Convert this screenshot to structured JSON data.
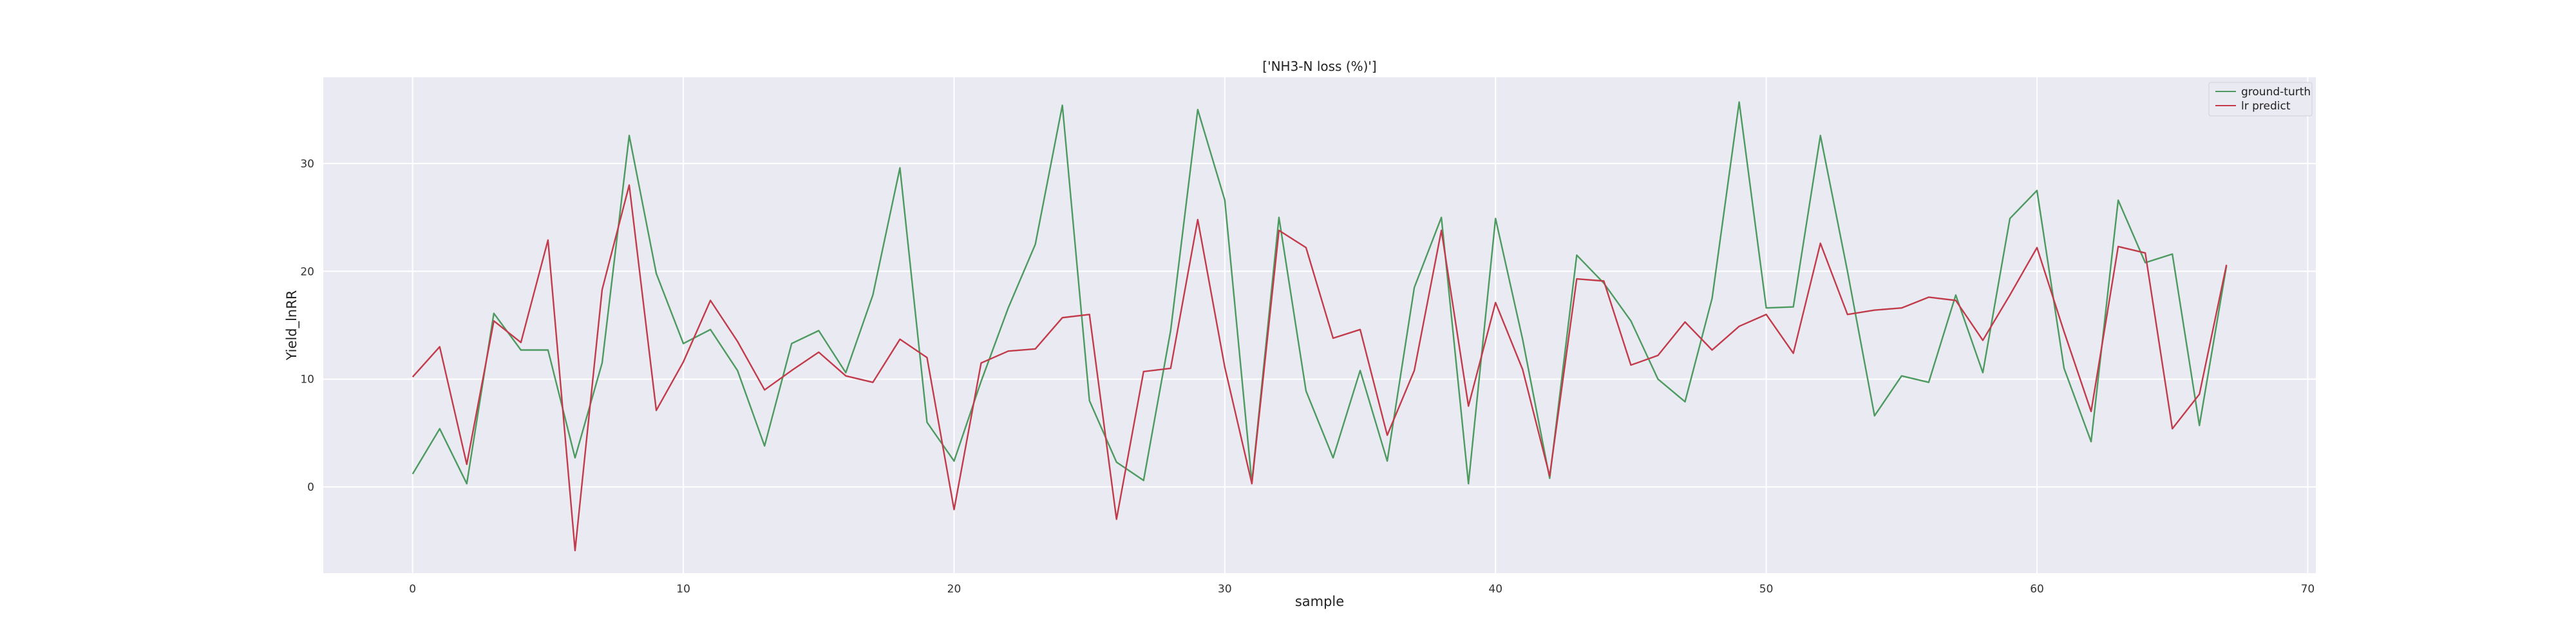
{
  "chart_data": {
    "type": "line",
    "title": "['NH3-N loss (%)']",
    "xlabel": "sample",
    "ylabel": "Yield_lnRR",
    "xlim": [
      -3.3,
      70.3
    ],
    "ylim": [
      -8,
      38
    ],
    "xticks": [
      0,
      10,
      20,
      30,
      40,
      50,
      60,
      70
    ],
    "yticks": [
      0,
      10,
      20,
      30
    ],
    "grid": true,
    "legend_position": "top-right",
    "x": [
      0,
      1,
      2,
      3,
      4,
      5,
      6,
      7,
      8,
      9,
      10,
      11,
      12,
      13,
      14,
      15,
      16,
      17,
      18,
      19,
      20,
      21,
      22,
      23,
      24,
      25,
      26,
      27,
      28,
      29,
      30,
      31,
      32,
      33,
      34,
      35,
      36,
      37,
      38,
      39,
      40,
      41,
      42,
      43,
      44,
      45,
      46,
      47,
      48,
      49,
      50,
      51,
      52,
      53,
      54,
      55,
      56,
      57,
      58,
      59,
      60,
      61,
      62,
      63,
      64,
      65,
      66,
      67
    ],
    "series": [
      {
        "name": "ground-turth",
        "color": "#4c9a5f",
        "values": [
          1.2,
          5.4,
          0.3,
          16.1,
          12.7,
          12.7,
          2.7,
          11.5,
          32.6,
          19.8,
          13.3,
          14.6,
          10.8,
          3.8,
          13.3,
          14.5,
          10.6,
          17.8,
          29.6,
          6.0,
          2.4,
          9.8,
          16.6,
          22.5,
          35.4,
          8.0,
          2.3,
          0.6,
          14.5,
          35.0,
          26.6,
          0.4,
          25.0,
          8.9,
          2.7,
          10.8,
          2.4,
          18.5,
          25.0,
          0.3,
          24.9,
          13.7,
          0.8,
          21.5,
          18.9,
          15.4,
          10.0,
          7.9,
          17.5,
          35.7,
          16.6,
          16.7,
          32.6,
          20.0,
          6.6,
          10.3,
          9.7,
          17.8,
          10.6,
          24.9,
          27.5,
          11.0,
          4.2,
          26.6,
          20.8,
          21.6,
          5.7,
          20.5
        ]
      },
      {
        "name": "lr predict",
        "color": "#c23b4a",
        "values": [
          10.2,
          13.0,
          2.1,
          15.4,
          13.4,
          22.9,
          -5.9,
          18.3,
          28.0,
          7.1,
          11.6,
          17.3,
          13.5,
          9.0,
          10.8,
          12.5,
          10.3,
          9.7,
          13.7,
          12.0,
          -2.1,
          11.5,
          12.6,
          12.8,
          15.7,
          16.0,
          -3.0,
          10.7,
          11.0,
          24.8,
          11.1,
          0.3,
          23.8,
          22.2,
          13.8,
          14.6,
          4.8,
          10.8,
          23.8,
          7.5,
          17.1,
          10.9,
          1.0,
          19.3,
          19.1,
          11.3,
          12.2,
          15.3,
          12.7,
          14.9,
          16.0,
          12.4,
          22.6,
          16.0,
          16.4,
          16.6,
          17.6,
          17.3,
          13.6,
          17.8,
          22.2,
          14.4,
          7.0,
          22.3,
          21.7,
          5.4,
          8.6,
          20.6
        ]
      }
    ]
  }
}
